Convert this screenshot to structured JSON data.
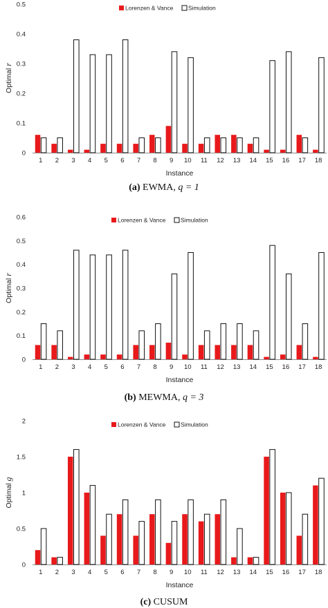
{
  "chart_data": [
    {
      "type": "bar",
      "categories": [
        "1",
        "2",
        "3",
        "4",
        "5",
        "6",
        "7",
        "8",
        "9",
        "10",
        "11",
        "12",
        "13",
        "14",
        "15",
        "16",
        "17",
        "18"
      ],
      "series": [
        {
          "name": "Lorenzen & Vance",
          "color": "#e8191b",
          "values": [
            0.06,
            0.03,
            0.01,
            0.01,
            0.03,
            0.03,
            0.03,
            0.06,
            0.09,
            0.03,
            0.03,
            0.06,
            0.06,
            0.03,
            0.01,
            0.01,
            0.06,
            0.01
          ]
        },
        {
          "name": "Simulation",
          "color": "#ffffff",
          "values": [
            0.05,
            0.05,
            0.38,
            0.33,
            0.33,
            0.38,
            0.05,
            0.05,
            0.34,
            0.32,
            0.05,
            0.05,
            0.05,
            0.05,
            0.31,
            0.34,
            0.05,
            0.32
          ]
        }
      ],
      "ylabel_prefix": "Optimal",
      "ylabel_symbol": "r",
      "xlabel": "Instance",
      "ylim": [
        0,
        0.5
      ],
      "yticks": [
        "0",
        "0.1",
        "0.2",
        "0.3",
        "0.4",
        "0.5"
      ],
      "caption_letter": "(a)",
      "caption_text": "EWMA,",
      "caption_math": "q = 1",
      "grid": false,
      "legend_position": "top-center"
    },
    {
      "type": "bar",
      "categories": [
        "1",
        "2",
        "3",
        "4",
        "5",
        "6",
        "7",
        "8",
        "9",
        "10",
        "11",
        "12",
        "13",
        "14",
        "15",
        "16",
        "17",
        "18"
      ],
      "series": [
        {
          "name": "Lorenzen & Vance",
          "color": "#e8191b",
          "values": [
            0.06,
            0.06,
            0.01,
            0.02,
            0.02,
            0.02,
            0.06,
            0.06,
            0.07,
            0.02,
            0.06,
            0.06,
            0.06,
            0.06,
            0.01,
            0.02,
            0.06,
            0.01
          ]
        },
        {
          "name": "Simulation",
          "color": "#ffffff",
          "values": [
            0.15,
            0.12,
            0.46,
            0.44,
            0.44,
            0.46,
            0.12,
            0.15,
            0.36,
            0.45,
            0.12,
            0.15,
            0.15,
            0.12,
            0.48,
            0.36,
            0.15,
            0.45
          ]
        }
      ],
      "ylabel_prefix": "Optimal",
      "ylabel_symbol": "r",
      "xlabel": "Instance",
      "ylim": [
        0,
        0.6
      ],
      "yticks": [
        "0",
        "0.1",
        "0.2",
        "0.3",
        "0.4",
        "0.5",
        "0.6"
      ],
      "caption_letter": "(b)",
      "caption_text": "MEWMA,",
      "caption_math": "q = 3",
      "grid": false,
      "legend_position": "top-center"
    },
    {
      "type": "bar",
      "categories": [
        "1",
        "2",
        "3",
        "4",
        "5",
        "6",
        "7",
        "8",
        "9",
        "10",
        "11",
        "12",
        "13",
        "14",
        "15",
        "16",
        "17",
        "18"
      ],
      "series": [
        {
          "name": "Lorenzen & Vance",
          "color": "#e8191b",
          "values": [
            0.2,
            0.1,
            1.5,
            1.0,
            0.4,
            0.7,
            0.4,
            0.7,
            0.3,
            0.7,
            0.6,
            0.7,
            0.1,
            0.1,
            1.5,
            1.0,
            0.4,
            1.1
          ]
        },
        {
          "name": "Simulation",
          "color": "#ffffff",
          "values": [
            0.5,
            0.1,
            1.6,
            1.1,
            0.7,
            0.9,
            0.6,
            0.9,
            0.6,
            0.9,
            0.7,
            0.9,
            0.5,
            0.1,
            1.6,
            1.0,
            0.7,
            1.2
          ]
        }
      ],
      "ylabel_prefix": "Optimal",
      "ylabel_symbol": "g",
      "xlabel": "Instance",
      "ylim": [
        0,
        2
      ],
      "yticks": [
        "0",
        "0.5",
        "1",
        "1.5",
        "2"
      ],
      "caption_letter": "(c)",
      "caption_text": "CUSUM",
      "caption_math": "",
      "grid": false,
      "legend_position": "top-center"
    }
  ]
}
